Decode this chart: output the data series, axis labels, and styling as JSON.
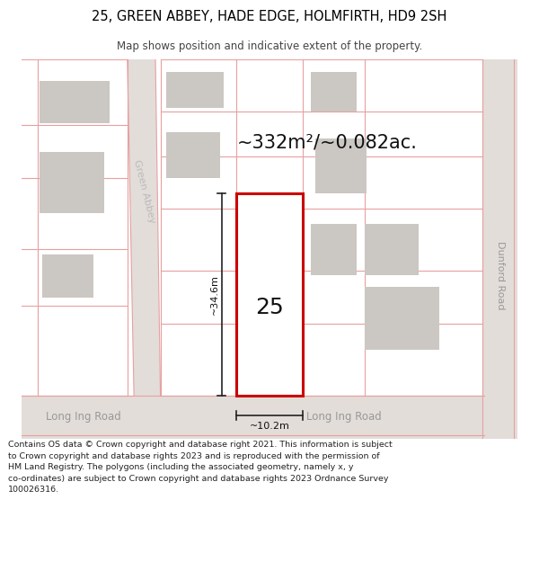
{
  "title": "25, GREEN ABBEY, HADE EDGE, HOLMFIRTH, HD9 2SH",
  "subtitle": "Map shows position and indicative extent of the property.",
  "area_label": "~332m²/~0.082ac.",
  "plot_number": "25",
  "dim_height": "~34.6m",
  "dim_width": "~10.2m",
  "road_label_left": "Long Ing Road",
  "road_label_right": "Long Ing Road",
  "road_label_right2": "Dunford Road",
  "street_label": "Green Abbey",
  "footer_line1": "Contains OS data © Crown copyright and database right 2021. This information is subject",
  "footer_line2": "to Crown copyright and database rights 2023 and is reproduced with the permission of",
  "footer_line3": "HM Land Registry. The polygons (including the associated geometry, namely x, y",
  "footer_line4": "co-ordinates) are subject to Crown copyright and database rights 2023 Ordnance Survey",
  "footer_line5": "100026316.",
  "map_bg": "#f2ede9",
  "plot_fill": "#ffffff",
  "plot_border": "#cc0000",
  "building_fill": "#cbc7c3",
  "road_line_color": "#e8a0a0",
  "road_bg": "#e2ddd9",
  "dim_line_color": "#222222",
  "text_color": "#333333",
  "title_color": "#000000",
  "label_gray": "#999999"
}
